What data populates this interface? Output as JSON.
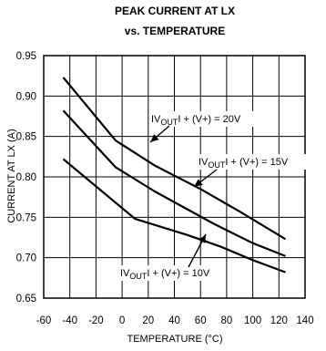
{
  "chart_data": {
    "type": "line",
    "title": [
      "PEAK CURRENT AT LX",
      "vs. TEMPERATURE"
    ],
    "xlabel": "TEMPERATURE (°C)",
    "ylabel": "CURRENT AT LX (A)",
    "xlim": [
      -60,
      140
    ],
    "ylim": [
      0.65,
      0.95
    ],
    "xticks": [
      -60,
      -40,
      -20,
      0,
      20,
      40,
      60,
      80,
      100,
      120,
      140
    ],
    "yticks": [
      0.65,
      0.7,
      0.75,
      0.8,
      0.85,
      0.9,
      0.95
    ],
    "ytick_labels": [
      "0.65",
      "0.70",
      "0.75",
      "0.80",
      "0.85",
      "0.90",
      "0.95"
    ],
    "grid": true,
    "series": [
      {
        "x": [
          -45,
          -5,
          25,
          60,
          90,
          125
        ],
        "y": [
          0.923,
          0.845,
          0.814,
          0.785,
          0.757,
          0.723
        ]
      },
      {
        "x": [
          -45,
          -5,
          25,
          70,
          100,
          125
        ],
        "y": [
          0.882,
          0.812,
          0.782,
          0.742,
          0.718,
          0.702
        ]
      },
      {
        "x": [
          -45,
          10,
          50,
          75,
          100,
          125
        ],
        "y": [
          0.822,
          0.748,
          0.728,
          0.714,
          0.697,
          0.682
        ]
      }
    ],
    "annotations": [
      {
        "prefix": "I",
        "main": "V",
        "sub": "OUT",
        "suffix": "I + (V+) = 20V"
      },
      {
        "prefix": "I",
        "main": "V",
        "sub": "OUT",
        "suffix": "I + (V+) = 15V"
      },
      {
        "prefix": "I",
        "main": "V",
        "sub": "OUT",
        "suffix": "I + (V+) = 10V"
      }
    ]
  }
}
